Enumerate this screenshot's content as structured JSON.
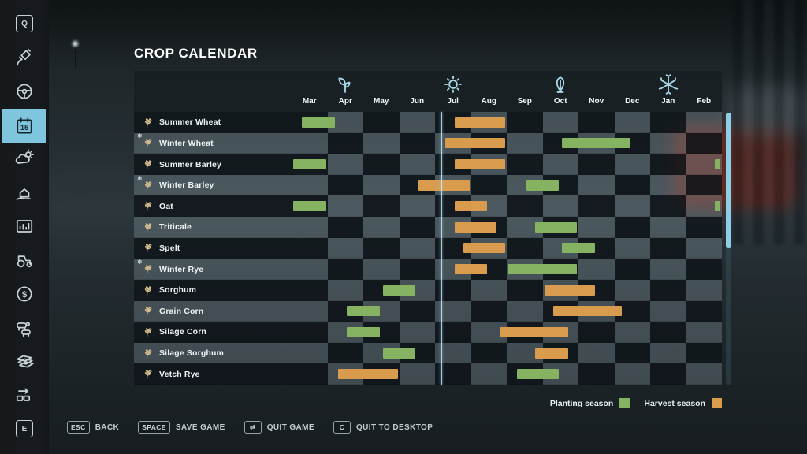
{
  "sidebar": {
    "items": [
      {
        "icon": "hotkey-q-icon",
        "label": "Q",
        "active": false
      },
      {
        "icon": "satellite-icon",
        "label": "",
        "active": false
      },
      {
        "icon": "steering-wheel-icon",
        "label": "",
        "active": false
      },
      {
        "icon": "calendar-icon",
        "label": "15",
        "active": true
      },
      {
        "icon": "weather-icon",
        "label": "",
        "active": false
      },
      {
        "icon": "finances-house-icon",
        "label": "",
        "active": false
      },
      {
        "icon": "statistics-icon",
        "label": "",
        "active": false
      },
      {
        "icon": "tractor-icon",
        "label": "",
        "active": false
      },
      {
        "icon": "money-icon",
        "label": "$",
        "active": false
      },
      {
        "icon": "animals-icon",
        "label": "",
        "active": false
      },
      {
        "icon": "contracts-icon",
        "label": "",
        "active": false
      },
      {
        "icon": "production-icon",
        "label": "",
        "active": false
      },
      {
        "icon": "hotkey-e-icon",
        "label": "E",
        "active": false
      }
    ]
  },
  "panel": {
    "title": "CROP CALENDAR",
    "months": [
      "Mar",
      "Apr",
      "May",
      "Jun",
      "Jul",
      "Aug",
      "Sep",
      "Oct",
      "Nov",
      "Dec",
      "Jan",
      "Feb"
    ],
    "seasons": [
      {
        "icon": "spring-icon",
        "month_index": 1
      },
      {
        "icon": "summer-icon",
        "month_index": 4
      },
      {
        "icon": "autumn-icon",
        "month_index": 7
      },
      {
        "icon": "winter-icon",
        "month_index": 10
      }
    ],
    "today_month_position": 4.15,
    "legend": [
      {
        "id": "planting",
        "label": "Planting season"
      },
      {
        "id": "harvest",
        "label": "Harvest season"
      }
    ]
  },
  "calendar": {
    "crops": [
      {
        "name": "Summer Wheat",
        "winter": false,
        "plant": [
          [
            0.25,
            1.25
          ]
        ],
        "harvest": [
          [
            4.5,
            6
          ]
        ]
      },
      {
        "name": "Winter Wheat",
        "winter": true,
        "plant": [
          [
            7.5,
            9.5
          ]
        ],
        "harvest": [
          [
            4.25,
            6
          ]
        ]
      },
      {
        "name": "Summer Barley",
        "winter": false,
        "plant": [
          [
            0,
            1
          ],
          [
            11.75,
            12
          ]
        ],
        "harvest": [
          [
            4.5,
            6
          ]
        ]
      },
      {
        "name": "Winter Barley",
        "winter": true,
        "plant": [
          [
            6.5,
            7.5
          ]
        ],
        "harvest": [
          [
            3.5,
            5
          ]
        ]
      },
      {
        "name": "Oat",
        "winter": false,
        "plant": [
          [
            0,
            1
          ],
          [
            11.75,
            12
          ]
        ],
        "harvest": [
          [
            4.5,
            5.5
          ]
        ]
      },
      {
        "name": "Triticale",
        "winter": false,
        "plant": [
          [
            6.75,
            8
          ]
        ],
        "harvest": [
          [
            4.5,
            5.75
          ]
        ]
      },
      {
        "name": "Spelt",
        "winter": false,
        "plant": [
          [
            7.5,
            8.5
          ]
        ],
        "harvest": [
          [
            4.75,
            6
          ]
        ]
      },
      {
        "name": "Winter Rye",
        "winter": true,
        "plant": [
          [
            6,
            8
          ]
        ],
        "harvest": [
          [
            4.5,
            5.5
          ]
        ]
      },
      {
        "name": "Sorghum",
        "winter": false,
        "plant": [
          [
            2.5,
            3.5
          ]
        ],
        "harvest": [
          [
            7,
            8.5
          ]
        ]
      },
      {
        "name": "Grain Corn",
        "winter": false,
        "plant": [
          [
            1.5,
            2.5
          ]
        ],
        "harvest": [
          [
            7.25,
            9.25
          ]
        ]
      },
      {
        "name": "Silage Corn",
        "winter": false,
        "plant": [
          [
            1.5,
            2.5
          ]
        ],
        "harvest": [
          [
            5.75,
            7.75
          ]
        ]
      },
      {
        "name": "Silage Sorghum",
        "winter": false,
        "plant": [
          [
            2.5,
            3.5
          ]
        ],
        "harvest": [
          [
            6.75,
            7.75
          ]
        ]
      },
      {
        "name": "Vetch Rye",
        "winter": false,
        "plant": [
          [
            6.25,
            7.5
          ]
        ],
        "harvest": [
          [
            1.25,
            3
          ]
        ]
      }
    ]
  },
  "footer": {
    "buttons": [
      {
        "key": "ESC",
        "label": "BACK"
      },
      {
        "key": "SPACE",
        "label": "SAVE GAME"
      },
      {
        "key": "⇄",
        "label": "QUIT GAME"
      },
      {
        "key": "C",
        "label": "QUIT TO DESKTOP"
      }
    ]
  },
  "colors": {
    "planting": "#86b361",
    "harvest": "#d99c4e",
    "accent_active": "#7fc5de",
    "today_line": "#cdeaf6"
  }
}
